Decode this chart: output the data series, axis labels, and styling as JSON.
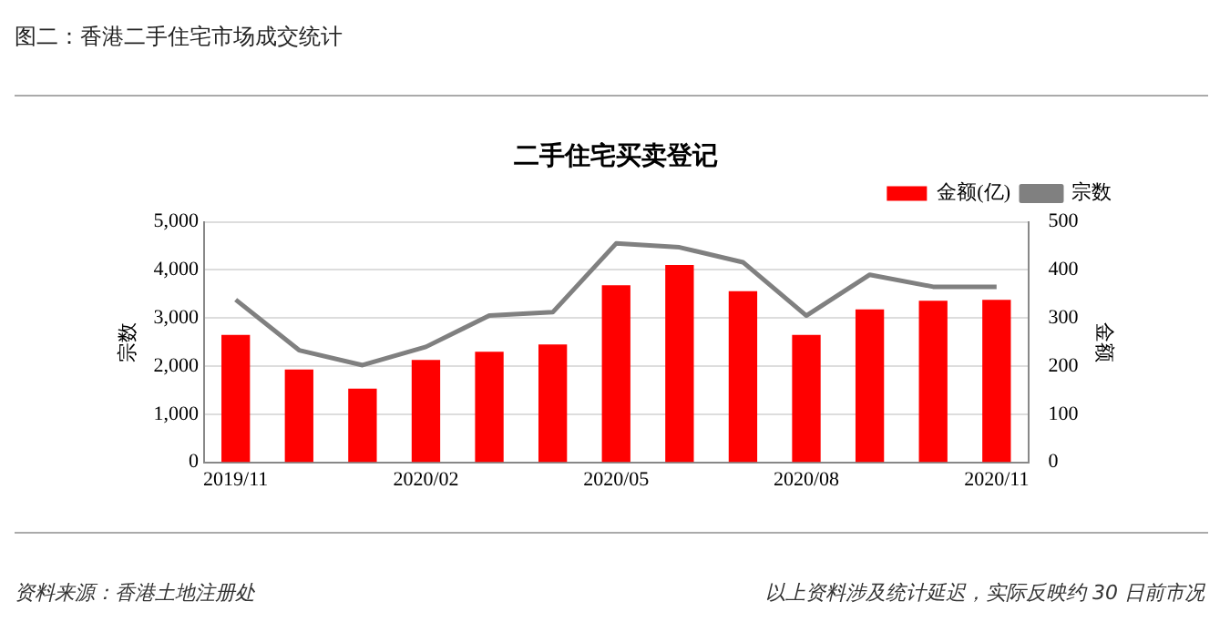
{
  "chart_data": {
    "type": "bar",
    "title": "二手住宅买卖登记",
    "ylabel": "宗数",
    "y2label": "金额",
    "categories": [
      "2019/11",
      null,
      null,
      "2020/02",
      null,
      null,
      "2020/05",
      null,
      null,
      "2020/08",
      null,
      null,
      "2020/11"
    ],
    "series": [
      {
        "name": "金额(亿)",
        "axis": "y2",
        "color": "#ff0000",
        "values": [
          265,
          193,
          153,
          213,
          230,
          245,
          368,
          410,
          356,
          265,
          318,
          336,
          338
        ]
      },
      {
        "name": "宗数",
        "type": "line",
        "color": "#808080",
        "values": [
          3380,
          2330,
          2020,
          2400,
          3050,
          3120,
          4550,
          4470,
          4160,
          3050,
          3900,
          3650,
          3650
        ]
      }
    ],
    "ylim": [
      0,
      5000
    ],
    "yticks": [
      0,
      {
        "value": 1000,
        "label": "1,000"
      },
      {
        "value": 2000,
        "label": "2,000"
      },
      {
        "value": 3000,
        "label": "3,000"
      },
      {
        "value": 4000,
        "label": "4,000"
      },
      {
        "value": 5000,
        "label": "5,000"
      }
    ],
    "y2lim": [
      0,
      500
    ],
    "y2ticks": [
      0,
      100,
      200,
      300,
      400,
      500
    ],
    "grid": "y",
    "legend": "top right",
    "marker": "none",
    "line_style": "solid",
    "annotations": [
      "图二：香港二手住宅市场成交统计",
      "资料来源：香港土地注册处",
      "以上资料涉及统计延迟，实际反映约 30 日前市况"
    ]
  }
}
